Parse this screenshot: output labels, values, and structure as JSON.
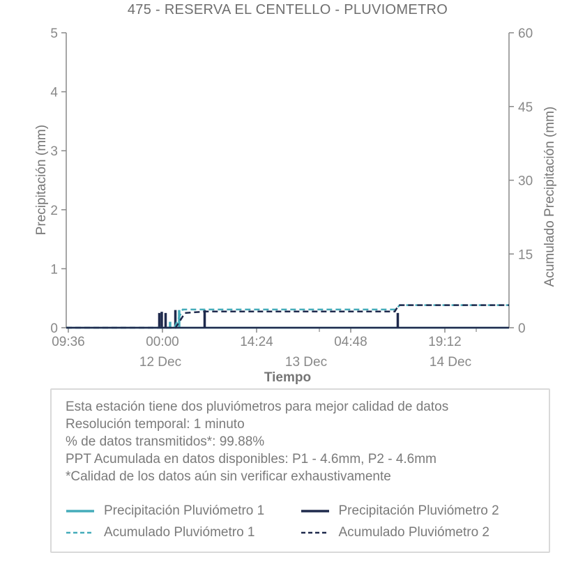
{
  "title": "475 - RESERVA EL CENTELLO - PLUVIOMETRO",
  "colors": {
    "teal": "#45acba",
    "navy": "#1f2a4d",
    "axis_gray": "#888888",
    "text_gray": "#757575",
    "box_border": "#d9d9d9"
  },
  "axes": {
    "x_title": "Tiempo",
    "y_left": {
      "title": "Precipitación (mm)",
      "ticks": [
        {
          "label": "0",
          "v": 0
        },
        {
          "label": "1",
          "v": 1
        },
        {
          "label": "2",
          "v": 2
        },
        {
          "label": "3",
          "v": 3
        },
        {
          "label": "4",
          "v": 4
        },
        {
          "label": "5",
          "v": 5
        }
      ]
    },
    "y_right": {
      "title": "Acumulado Precipitación (mm)",
      "ticks": [
        {
          "label": "0",
          "v": 0
        },
        {
          "label": "15",
          "v": 15
        },
        {
          "label": "30",
          "v": 30
        },
        {
          "label": "45",
          "v": 45
        },
        {
          "label": "60",
          "v": 60
        }
      ]
    },
    "x_ticks": [
      {
        "label": "09:36",
        "fx": 0.0047
      },
      {
        "label": "00:00",
        "fx": 0.2173
      },
      {
        "label": "14:24",
        "fx": 0.4299
      },
      {
        "label": "04:48",
        "fx": 0.6425
      },
      {
        "label": "19:12",
        "fx": 0.8551
      }
    ],
    "x_minor_ticks": [
      0.5717,
      0.926
    ],
    "x_date_labels": [
      {
        "label": "12 Dec",
        "fx": 0.2126
      },
      {
        "label": "13 Dec",
        "fx": 0.5417
      },
      {
        "label": "14 Dec",
        "fx": 0.8677
      }
    ]
  },
  "chart_data": {
    "type": "line",
    "title": "475 - RESERVA EL CENTELLO - PLUVIOMETRO",
    "xlabel": "Tiempo",
    "ylabel_left": "Precipitación (mm)",
    "ylabel_right": "Acumulado Precipitación (mm)",
    "ylim_left": [
      0,
      5
    ],
    "ylim_right": [
      0,
      60
    ],
    "x_range": "11 Dec 09:36 to 14 Dec ~05:00, major ticks every 14.4 h",
    "series": [
      {
        "name": "Precipitación Pluviómetro 1",
        "axis": "left",
        "style": "solid",
        "color": "#45acba",
        "render": "spikes",
        "baseline": 0,
        "spikes": [
          {
            "fx": 0.2346,
            "mm": 0.1,
            "time": "12 Dec 01:25"
          },
          {
            "fx": 0.2551,
            "mm": 0.3,
            "time": "12 Dec 02:48"
          }
        ]
      },
      {
        "name": "Precipitación Pluviómetro 2",
        "axis": "left",
        "style": "solid",
        "color": "#1f2a4d",
        "render": "spikes",
        "baseline": 0,
        "spikes": [
          {
            "fx": 0.2102,
            "mm": 0.25,
            "time": "11 Dec 23:46"
          },
          {
            "fx": 0.2157,
            "mm": 0.27,
            "time": "12 Dec 00:08"
          },
          {
            "fx": 0.2244,
            "mm": 0.25,
            "time": "12 Dec 00:44"
          },
          {
            "fx": 0.2465,
            "mm": 0.3,
            "time": "12 Dec 02:13"
          },
          {
            "fx": 0.3126,
            "mm": 0.3,
            "time": "12 Dec 06:40"
          },
          {
            "fx": 0.7488,
            "mm": 0.25,
            "time": "13 Dec 12:05"
          }
        ]
      },
      {
        "name": "Acumulado Pluviómetro 1",
        "axis": "right",
        "style": "dashed",
        "color": "#45acba",
        "render": "step",
        "final_total_mm": 4.6,
        "points": [
          [
            0,
            0
          ],
          [
            0.244,
            0
          ],
          [
            0.263,
            3.7
          ],
          [
            0.744,
            3.7
          ],
          [
            0.753,
            4.6
          ],
          [
            1,
            4.6
          ]
        ]
      },
      {
        "name": "Acumulado Pluviómetro 2",
        "axis": "right",
        "style": "dashed",
        "color": "#1f2a4d",
        "render": "step",
        "final_total_mm": 4.6,
        "points": [
          [
            0,
            0
          ],
          [
            0.247,
            0
          ],
          [
            0.268,
            3.0
          ],
          [
            0.315,
            3.3
          ],
          [
            0.742,
            3.3
          ],
          [
            0.751,
            4.6
          ],
          [
            1,
            4.6
          ]
        ]
      }
    ]
  },
  "info_box": {
    "lines": [
      "Esta estación tiene dos pluviómetros para mejor calidad de datos",
      "Resolución temporal: 1 minuto",
      "% de datos transmitidos*: 99.88%",
      "PPT Acumulada en datos disponibles: P1 - 4.6mm, P2 - 4.6mm",
      "*Calidad de los datos aún sin verificar exhaustivamente"
    ]
  },
  "legend": {
    "items": [
      {
        "label": "Precipitación Pluviómetro 1",
        "color": "#45acba",
        "dash": "solid"
      },
      {
        "label": "Precipitación Pluviómetro 2",
        "color": "#1f2a4d",
        "dash": "solid"
      },
      {
        "label": "Acumulado Pluviómetro 1",
        "color": "#45acba",
        "dash": "dashed"
      },
      {
        "label": "Acumulado Pluviómetro 2",
        "color": "#1f2a4d",
        "dash": "dashed"
      }
    ]
  }
}
